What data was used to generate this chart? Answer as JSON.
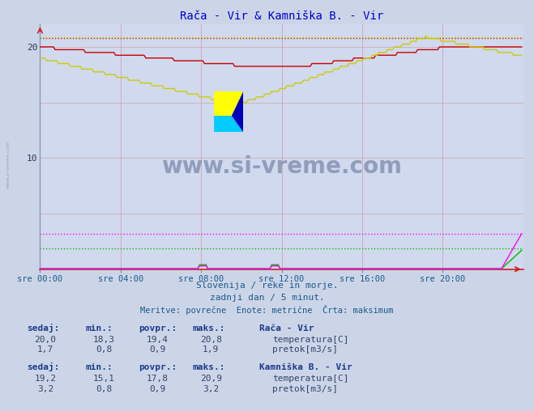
{
  "title": "Rača - Vir & Kamniška B. - Vir",
  "title_color": "#0000cc",
  "bg_color": "#ccd5e8",
  "plot_bg_color": "#d0d9ee",
  "watermark_text": "www.si-vreme.com",
  "watermark_color": "#1a3060",
  "xlabel_ticks": [
    "sre 00:00",
    "sre 04:00",
    "sre 08:00",
    "sre 12:00",
    "sre 16:00",
    "sre 20:00"
  ],
  "ylim": [
    0,
    22
  ],
  "xlim": [
    0,
    288
  ],
  "subtitle1": "Slovenija / reke in morje.",
  "subtitle2": "zadnji dan / 5 minut.",
  "subtitle3": "Meritve: povrečne  Enote: metrične  Črta: maksimum",
  "subtitle_color": "#1a5a8a",
  "grid_color_v": "#d08080",
  "grid_color_h": "#d09090",
  "raca_temp_color": "#cc0000",
  "raca_pretok_color": "#00bb00",
  "kamb_temp_color": "#cccc00",
  "kamb_pretok_color": "#ff00ff",
  "raca_temp_max": 20.8,
  "kamb_temp_max": 20.9,
  "raca_pretok_max": 1.9,
  "kamb_pretok_max": 3.2,
  "legend_label_raca": "Rača - Vir",
  "legend_label_kamb": "Kamniška B. - Vir",
  "stat_headers": [
    "sedaj:",
    "min.:",
    "povpr.:",
    "maks.:"
  ],
  "raca_stats_temp": [
    20.0,
    18.3,
    19.4,
    20.8
  ],
  "raca_stats_pretok": [
    1.7,
    0.8,
    0.9,
    1.9
  ],
  "kamb_stats_temp": [
    19.2,
    15.1,
    17.8,
    20.9
  ],
  "kamb_stats_pretok": [
    3.2,
    0.8,
    0.9,
    3.2
  ],
  "n_points": 288
}
